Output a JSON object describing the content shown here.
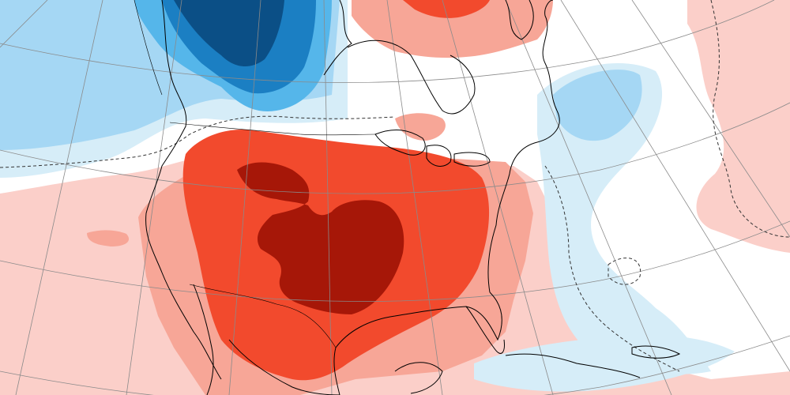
{
  "map": {
    "colors": {
      "background": "#ffffff",
      "warm_1": "#fbcfc9",
      "warm_2": "#f7a697",
      "warm_3": "#f24a2d",
      "warm_4": "#a61708",
      "cool_1": "#d6edf8",
      "cool_2": "#a5d7f4",
      "cool_3": "#55b6ea",
      "cool_4": "#1b7fc3",
      "cool_5": "#0b4f86",
      "graticule": "#8a8a8a",
      "coastline": "#000000",
      "zero_contour": "#333333"
    },
    "layers": [
      "anomaly-shading",
      "graticule",
      "zero-anomaly-dashed-contour",
      "coastlines",
      "borders"
    ]
  }
}
